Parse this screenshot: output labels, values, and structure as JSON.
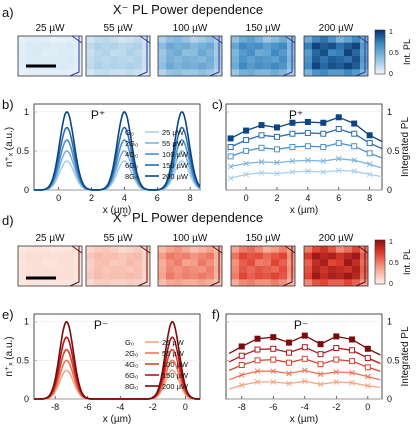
{
  "sections": [
    {
      "letter": "a)",
      "title": "X⁻ PL Power dependence",
      "colormap": [
        "#f2f7fc",
        "#8fc0e0",
        "#3a87c0",
        "#08306b"
      ],
      "colorbar": {
        "label": "Int. PL",
        "tick_top": "1",
        "tick_mid": "0.5",
        "tick_bottom": "0"
      },
      "maps": [
        {
          "label": "25 µW",
          "level": 0.08
        },
        {
          "label": "55 µW",
          "level": 0.22
        },
        {
          "label": "100 µW",
          "level": 0.45
        },
        {
          "label": "150 µW",
          "level": 0.62
        },
        {
          "label": "200 µW",
          "level": 0.88
        }
      ]
    },
    {
      "letter": "d)",
      "title": "X⁺ PL Power dependence",
      "colormap": [
        "#fdf1ec",
        "#f5a38e",
        "#df3f2f",
        "#8a0f12"
      ],
      "colorbar": {
        "label": "Int. PL",
        "tick_top": "1",
        "tick_mid": "0.5",
        "tick_bottom": "0"
      },
      "maps": [
        {
          "label": "25 µW",
          "level": 0.08
        },
        {
          "label": "55 µW",
          "level": 0.22
        },
        {
          "label": "100 µW",
          "level": 0.45
        },
        {
          "label": "150 µW",
          "level": 0.62
        },
        {
          "label": "200 µW",
          "level": 0.88
        }
      ]
    }
  ],
  "chart_data": [
    {
      "panel": "b)",
      "type": "line",
      "annotation": "P⁺",
      "xlabel": "x (µm)",
      "ylabel": "n⁺ₓ (a.u.)",
      "xlim": [
        -1.5,
        8.6
      ],
      "ylim": [
        0,
        1.1
      ],
      "xticks": [
        0,
        2,
        4,
        6,
        8
      ],
      "yticks": [
        0,
        0.5,
        1
      ],
      "legend_left": [
        "G₀",
        "2G₀",
        "4G₀",
        "6G₀",
        "8G₀"
      ],
      "legend_right": [
        "25 µW",
        "55 µW",
        "100 µW",
        "150 µW",
        "200 µW"
      ],
      "colors": [
        "#a9cfe9",
        "#7fb4dc",
        "#4d92c8",
        "#2a6eaf",
        "#0b4585"
      ],
      "peak_positions": [
        0.5,
        4.0,
        7.5
      ],
      "peak_width": 0.62,
      "series_peaks": [
        0.37,
        0.5,
        0.64,
        0.8,
        1.0
      ]
    },
    {
      "panel": "c)",
      "type": "line",
      "annotation": "P⁺",
      "xlabel": "x (µm)",
      "ylabel": "Integrated PL",
      "xlim": [
        -1.3,
        8.8
      ],
      "ylim": [
        0,
        1.1
      ],
      "xticks": [
        0,
        2,
        4,
        6,
        8
      ],
      "yticks": [
        0,
        0.5,
        1
      ],
      "x": [
        -1,
        0,
        1,
        2,
        3,
        4,
        5,
        6,
        7,
        8,
        8.8
      ],
      "colors": [
        "#a9cfe9",
        "#7fb4dc",
        "#4d92c8",
        "#2a6eaf",
        "#0b4585"
      ],
      "markers": [
        "x",
        "x",
        "open-square",
        "open-square",
        "filled-square"
      ],
      "series": [
        {
          "values": [
            0.15,
            0.2,
            0.22,
            0.21,
            0.23,
            0.24,
            0.23,
            0.25,
            0.24,
            0.2,
            0.17
          ]
        },
        {
          "values": [
            0.3,
            0.34,
            0.36,
            0.35,
            0.37,
            0.38,
            0.37,
            0.4,
            0.38,
            0.33,
            0.28
          ]
        },
        {
          "values": [
            0.43,
            0.5,
            0.54,
            0.52,
            0.55,
            0.56,
            0.55,
            0.6,
            0.56,
            0.47,
            0.41
          ]
        },
        {
          "values": [
            0.55,
            0.64,
            0.7,
            0.68,
            0.72,
            0.73,
            0.72,
            0.78,
            0.72,
            0.6,
            0.53
          ]
        },
        {
          "values": [
            0.66,
            0.76,
            0.83,
            0.8,
            0.86,
            0.87,
            0.86,
            0.93,
            0.85,
            0.7,
            0.62
          ]
        }
      ]
    },
    {
      "panel": "e)",
      "type": "line",
      "annotation": "P⁻",
      "xlabel": "x (µm)",
      "ylabel": "n⁺ₓ (a.u.)",
      "xlim": [
        -9.3,
        0.9
      ],
      "ylim": [
        0,
        1.1
      ],
      "xticks": [
        -8,
        -6,
        -4,
        -2,
        0
      ],
      "yticks": [
        0,
        0.5,
        1
      ],
      "legend_left": [
        "G₀",
        "2G₀",
        "4G₀",
        "6G₀",
        "8G₀"
      ],
      "legend_right": [
        "25 µW",
        "55 µW",
        "100 µW",
        "150 µW",
        "200 µW"
      ],
      "colors": [
        "#f4a582",
        "#ef7458",
        "#d6452f",
        "#b0191d",
        "#7a0a0d"
      ],
      "peak_positions": [
        -7.3,
        -0.8
      ],
      "peak_width": 0.6,
      "series_peaks": [
        0.37,
        0.5,
        0.64,
        0.8,
        1.0
      ]
    },
    {
      "panel": "f)",
      "type": "line",
      "annotation": "P⁻",
      "xlabel": "x (µm)",
      "ylabel": "Integrated PL",
      "xlim": [
        -9.0,
        0.9
      ],
      "ylim": [
        0,
        1.1
      ],
      "xticks": [
        -8,
        -6,
        -4,
        -2,
        0
      ],
      "yticks": [
        0,
        0.5,
        1
      ],
      "x": [
        -8.8,
        -8,
        -7,
        -6,
        -5,
        -4,
        -3,
        -2,
        -1,
        0,
        0.8
      ],
      "colors": [
        "#f4a582",
        "#ef7458",
        "#d6452f",
        "#b0191d",
        "#7a0a0d"
      ],
      "markers": [
        "x",
        "x",
        "open-square",
        "open-square",
        "filled-square"
      ],
      "series": [
        {
          "values": [
            0.13,
            0.18,
            0.22,
            0.22,
            0.2,
            0.23,
            0.19,
            0.22,
            0.21,
            0.17,
            0.15
          ]
        },
        {
          "values": [
            0.25,
            0.31,
            0.36,
            0.36,
            0.33,
            0.37,
            0.32,
            0.35,
            0.34,
            0.29,
            0.25
          ]
        },
        {
          "values": [
            0.37,
            0.44,
            0.5,
            0.51,
            0.47,
            0.52,
            0.45,
            0.51,
            0.49,
            0.41,
            0.36
          ]
        },
        {
          "values": [
            0.48,
            0.56,
            0.64,
            0.65,
            0.6,
            0.67,
            0.58,
            0.66,
            0.63,
            0.53,
            0.46
          ]
        },
        {
          "values": [
            0.59,
            0.68,
            0.78,
            0.8,
            0.73,
            0.82,
            0.71,
            0.81,
            0.77,
            0.65,
            0.57
          ]
        }
      ]
    }
  ]
}
